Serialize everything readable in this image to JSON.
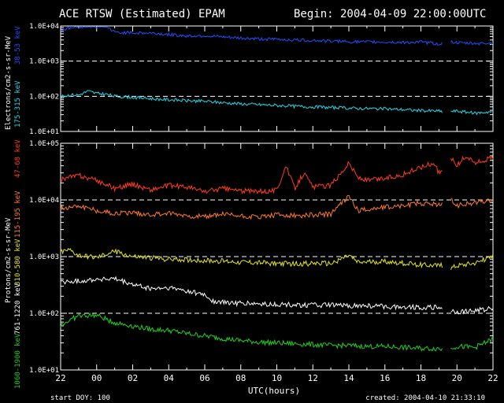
{
  "header": {
    "title": "ACE RTSW (Estimated) EPAM",
    "begin": "Begin: 2004-04-09 22:00:00UTC"
  },
  "footer": {
    "start_doy": "start DOY: 100",
    "created": "created: 2004-04-10 21:33:10"
  },
  "colors": {
    "background": "#000000",
    "axes": "#ffffff",
    "e_38_53": "#1f4fff",
    "e_175_315": "#22d8e8",
    "p_47_68": "#ff3d1a",
    "p_115_195": "#ff7a28",
    "p_310_580": "#e6e61a",
    "p_761_1220": "#ffffff",
    "p_1060_1900": "#20d020"
  },
  "chart_data": [
    {
      "type": "line",
      "title": "ACE RTSW (Estimated) EPAM",
      "ylabel": "Electrons/cm2-s-sr-MeV",
      "xlabel": "UTC(hours)",
      "yscale": "log",
      "ylim": [
        10,
        10000
      ],
      "y_ticks": [
        "1.0E+01",
        "1.0E+02",
        "1.0E+03",
        "1.0E+04"
      ],
      "x_ticks": [
        "22",
        "00",
        "02",
        "04",
        "06",
        "08",
        "10",
        "12",
        "14",
        "16",
        "18",
        "20",
        "22"
      ],
      "x_range_hours": [
        0,
        24
      ],
      "reference_lines": [
        1000,
        100
      ],
      "data_gap_hours": [
        21.2,
        21.6
      ],
      "series": [
        {
          "name": "38-53 keV",
          "color_key": "e_38_53",
          "x": [
            0,
            0.5,
            1,
            1.5,
            2,
            2.5,
            3,
            4,
            5,
            6,
            7,
            8,
            9,
            10,
            11,
            12,
            13,
            14,
            15,
            16,
            17,
            18,
            19,
            20,
            21,
            21.2,
            21.7,
            22,
            23,
            24
          ],
          "y": [
            7600,
            8800,
            9600,
            9800,
            9700,
            10000,
            6600,
            6400,
            6300,
            5700,
            5200,
            5300,
            4800,
            4500,
            4300,
            4200,
            4000,
            3900,
            3700,
            3600,
            3500,
            3500,
            3400,
            3500,
            3100,
            3200,
            3600,
            3300,
            3200,
            3300
          ]
        },
        {
          "name": "175-315 keV",
          "color_key": "e_175_315",
          "x": [
            0,
            0.5,
            1,
            1.5,
            2,
            2.5,
            3,
            4,
            5,
            6,
            7,
            8,
            9,
            10,
            11,
            12,
            13,
            14,
            15,
            16,
            17,
            18,
            19,
            20,
            21,
            21.2,
            21.7,
            22,
            23,
            24
          ],
          "y": [
            95,
            110,
            108,
            140,
            120,
            115,
            100,
            94,
            86,
            80,
            75,
            72,
            66,
            61,
            58,
            55,
            52,
            50,
            48,
            46,
            45,
            44,
            42,
            39,
            38,
            36,
            37,
            38,
            33,
            37
          ]
        }
      ]
    },
    {
      "type": "line",
      "ylabel": "Protons/cm2-s-sr-MeV",
      "xlabel": "UTC(hours)",
      "yscale": "log",
      "ylim": [
        10,
        100000
      ],
      "y_ticks": [
        "1.0E+01",
        "1.0E+02",
        "1.0E+03",
        "1.0E+04",
        "1.0E+05"
      ],
      "x_ticks": [
        "22",
        "00",
        "02",
        "04",
        "06",
        "08",
        "10",
        "12",
        "14",
        "16",
        "18",
        "20",
        "22"
      ],
      "x_range_hours": [
        0,
        24
      ],
      "reference_lines": [
        10000,
        1000,
        100
      ],
      "data_gap_hours": [
        21.2,
        21.6
      ],
      "series": [
        {
          "name": "47-68 keV",
          "color_key": "p_47_68",
          "x": [
            0,
            0.5,
            1,
            2,
            3,
            4,
            5,
            6,
            7,
            8,
            9,
            10,
            11,
            12,
            12.5,
            13,
            13.5,
            14,
            15,
            16,
            16.5,
            17,
            18,
            19,
            20,
            20.7,
            21,
            21.2,
            21.7,
            22,
            22.5,
            23,
            24
          ],
          "y": [
            23000,
            25000,
            27000,
            22000,
            16000,
            19000,
            15000,
            18000,
            17000,
            14000,
            16000,
            14500,
            14000,
            15000,
            40000,
            16000,
            30000,
            17000,
            18000,
            45000,
            25000,
            22000,
            24000,
            28000,
            38000,
            45000,
            30000,
            32000,
            55000,
            40000,
            60000,
            45000,
            55000
          ]
        },
        {
          "name": "115-195 keV",
          "color_key": "p_115_195",
          "x": [
            0,
            0.5,
            1,
            2,
            3,
            4,
            5,
            6,
            7,
            8,
            9,
            10,
            11,
            12,
            13,
            14,
            15,
            16,
            16.5,
            17,
            18,
            19,
            20,
            21,
            21.2,
            21.7,
            22,
            23,
            24
          ],
          "y": [
            7000,
            7500,
            8000,
            6500,
            5800,
            6000,
            5500,
            5800,
            5300,
            5000,
            5600,
            5200,
            5000,
            5400,
            5200,
            5500,
            5600,
            12000,
            6500,
            6800,
            7500,
            8000,
            8800,
            8200,
            8400,
            10000,
            8000,
            9000,
            10000
          ]
        },
        {
          "name": "310-580 keV",
          "color_key": "p_310_580",
          "x": [
            0,
            0.5,
            1,
            2,
            3,
            4,
            5,
            6,
            7,
            8,
            9,
            10,
            11,
            12,
            13,
            14,
            15,
            16,
            16.5,
            17,
            18,
            19,
            20,
            21,
            21.2,
            21.7,
            22,
            23,
            24
          ],
          "y": [
            1200,
            1300,
            1050,
            950,
            1250,
            1000,
            950,
            900,
            880,
            850,
            830,
            800,
            780,
            760,
            740,
            760,
            750,
            1050,
            780,
            800,
            820,
            760,
            720,
            700,
            690,
            640,
            700,
            780,
            1000
          ]
        },
        {
          "name": "761-1220 keV",
          "color_key": "p_761_1220",
          "x": [
            0,
            0.5,
            1,
            2,
            3,
            4,
            5,
            6,
            7,
            8,
            8.5,
            9,
            10,
            11,
            12,
            13,
            14,
            15,
            16,
            17,
            18,
            19,
            20,
            21,
            21.2,
            21.7,
            22,
            23,
            24
          ],
          "y": [
            350,
            360,
            370,
            400,
            400,
            320,
            270,
            280,
            250,
            210,
            160,
            155,
            150,
            145,
            142,
            140,
            140,
            138,
            135,
            134,
            132,
            130,
            128,
            126,
            122,
            110,
            105,
            110,
            125
          ]
        },
        {
          "name": "1060-1900 keV",
          "color_key": "p_1060_1900",
          "x": [
            0,
            0.5,
            1,
            2,
            3,
            4,
            5,
            6,
            7,
            8,
            9,
            10,
            11,
            12,
            13,
            14,
            15,
            16,
            17,
            18,
            19,
            20,
            21,
            21.2,
            21.7,
            22,
            23,
            24
          ],
          "y": [
            62,
            75,
            90,
            92,
            68,
            60,
            52,
            50,
            44,
            40,
            36,
            33,
            31,
            30,
            29,
            28,
            27,
            27,
            26,
            26,
            25,
            24,
            24,
            23,
            25,
            26,
            25,
            35
          ]
        }
      ]
    }
  ]
}
